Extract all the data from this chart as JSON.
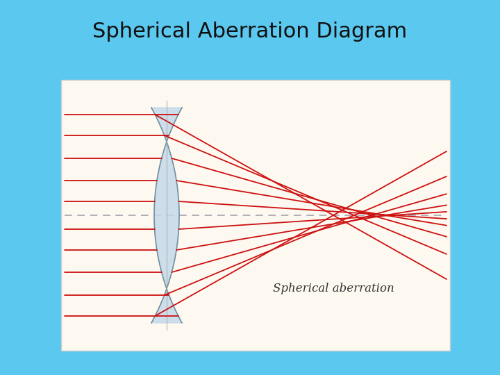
{
  "title": "Spherical Aberration Diagram",
  "title_fontsize": 22,
  "title_color": "#111111",
  "bg_color": "#5bc8f0",
  "panel_facecolor": "#fef9f0",
  "panel_edgecolor": "#cccccc",
  "lens_facecolor": "#c5d8e8",
  "lens_edgecolor": "#7090a0",
  "optical_axis_color": "#9999aa",
  "ray_color": "#cc1111",
  "annotation_text": "Spherical aberration",
  "annotation_fontsize": 12,
  "ray_linewidth": 1.3,
  "lens_linewidth": 1.2
}
